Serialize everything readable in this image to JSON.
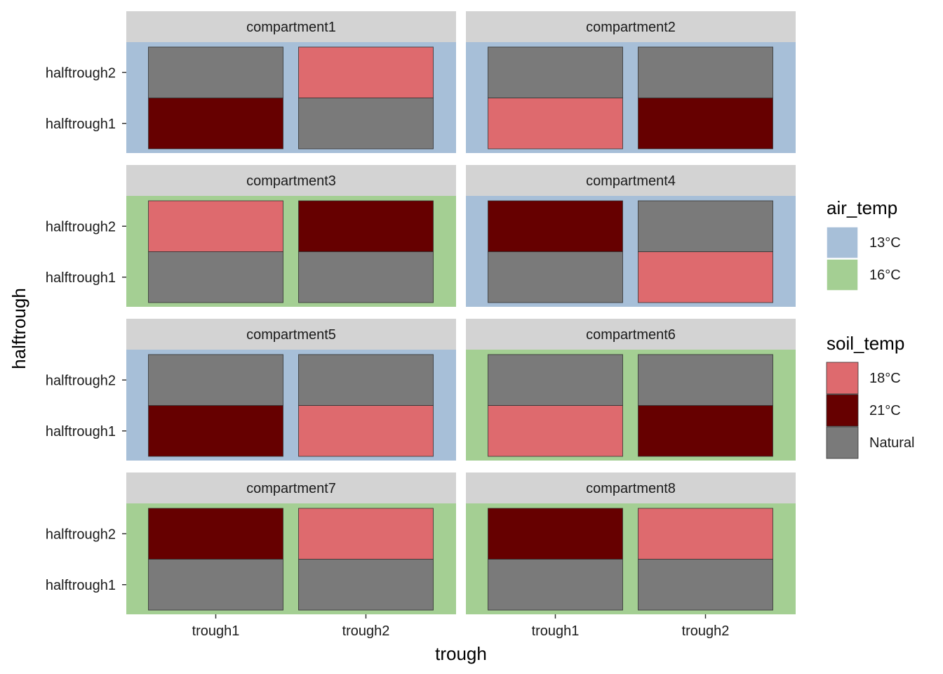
{
  "chart_data": {
    "type": "heatmap",
    "xlabel": "trough",
    "ylabel": "halftrough",
    "x_categories": [
      "trough1",
      "trough2"
    ],
    "y_categories": [
      "halftrough1",
      "halftrough2"
    ],
    "layout": "facet grid, 2 columns x 4 rows",
    "grid": false,
    "legend_position": "right",
    "legends": [
      {
        "title": "air_temp",
        "entries": [
          {
            "label": "13°C",
            "color": "#a7bfd8"
          },
          {
            "label": "16°C",
            "color": "#a4cf93"
          }
        ]
      },
      {
        "title": "soil_temp",
        "entries": [
          {
            "label": "18°C",
            "color": "#de6a6e"
          },
          {
            "label": "21°C",
            "color": "#660000"
          },
          {
            "label": "Natural",
            "color": "#7a7a7a"
          }
        ]
      }
    ],
    "facets": [
      {
        "label": "compartment1",
        "air_temp": "13°C",
        "cells": [
          {
            "trough": "trough1",
            "halftrough": "halftrough1",
            "soil_temp": "21°C"
          },
          {
            "trough": "trough1",
            "halftrough": "halftrough2",
            "soil_temp": "Natural"
          },
          {
            "trough": "trough2",
            "halftrough": "halftrough1",
            "soil_temp": "Natural"
          },
          {
            "trough": "trough2",
            "halftrough": "halftrough2",
            "soil_temp": "18°C"
          }
        ]
      },
      {
        "label": "compartment2",
        "air_temp": "13°C",
        "cells": [
          {
            "trough": "trough1",
            "halftrough": "halftrough1",
            "soil_temp": "18°C"
          },
          {
            "trough": "trough1",
            "halftrough": "halftrough2",
            "soil_temp": "Natural"
          },
          {
            "trough": "trough2",
            "halftrough": "halftrough1",
            "soil_temp": "21°C"
          },
          {
            "trough": "trough2",
            "halftrough": "halftrough2",
            "soil_temp": "Natural"
          }
        ]
      },
      {
        "label": "compartment3",
        "air_temp": "16°C",
        "cells": [
          {
            "trough": "trough1",
            "halftrough": "halftrough1",
            "soil_temp": "Natural"
          },
          {
            "trough": "trough1",
            "halftrough": "halftrough2",
            "soil_temp": "18°C"
          },
          {
            "trough": "trough2",
            "halftrough": "halftrough1",
            "soil_temp": "Natural"
          },
          {
            "trough": "trough2",
            "halftrough": "halftrough2",
            "soil_temp": "21°C"
          }
        ]
      },
      {
        "label": "compartment4",
        "air_temp": "13°C",
        "cells": [
          {
            "trough": "trough1",
            "halftrough": "halftrough1",
            "soil_temp": "Natural"
          },
          {
            "trough": "trough1",
            "halftrough": "halftrough2",
            "soil_temp": "21°C"
          },
          {
            "trough": "trough2",
            "halftrough": "halftrough1",
            "soil_temp": "18°C"
          },
          {
            "trough": "trough2",
            "halftrough": "halftrough2",
            "soil_temp": "Natural"
          }
        ]
      },
      {
        "label": "compartment5",
        "air_temp": "13°C",
        "cells": [
          {
            "trough": "trough1",
            "halftrough": "halftrough1",
            "soil_temp": "21°C"
          },
          {
            "trough": "trough1",
            "halftrough": "halftrough2",
            "soil_temp": "Natural"
          },
          {
            "trough": "trough2",
            "halftrough": "halftrough1",
            "soil_temp": "18°C"
          },
          {
            "trough": "trough2",
            "halftrough": "halftrough2",
            "soil_temp": "Natural"
          }
        ]
      },
      {
        "label": "compartment6",
        "air_temp": "16°C",
        "cells": [
          {
            "trough": "trough1",
            "halftrough": "halftrough1",
            "soil_temp": "18°C"
          },
          {
            "trough": "trough1",
            "halftrough": "halftrough2",
            "soil_temp": "Natural"
          },
          {
            "trough": "trough2",
            "halftrough": "halftrough1",
            "soil_temp": "21°C"
          },
          {
            "trough": "trough2",
            "halftrough": "halftrough2",
            "soil_temp": "Natural"
          }
        ]
      },
      {
        "label": "compartment7",
        "air_temp": "16°C",
        "cells": [
          {
            "trough": "trough1",
            "halftrough": "halftrough1",
            "soil_temp": "Natural"
          },
          {
            "trough": "trough1",
            "halftrough": "halftrough2",
            "soil_temp": "21°C"
          },
          {
            "trough": "trough2",
            "halftrough": "halftrough1",
            "soil_temp": "Natural"
          },
          {
            "trough": "trough2",
            "halftrough": "halftrough2",
            "soil_temp": "18°C"
          }
        ]
      },
      {
        "label": "compartment8",
        "air_temp": "16°C",
        "cells": [
          {
            "trough": "trough1",
            "halftrough": "halftrough1",
            "soil_temp": "Natural"
          },
          {
            "trough": "trough1",
            "halftrough": "halftrough2",
            "soil_temp": "21°C"
          },
          {
            "trough": "trough2",
            "halftrough": "halftrough1",
            "soil_temp": "Natural"
          },
          {
            "trough": "trough2",
            "halftrough": "halftrough2",
            "soil_temp": "18°C"
          }
        ]
      }
    ]
  }
}
